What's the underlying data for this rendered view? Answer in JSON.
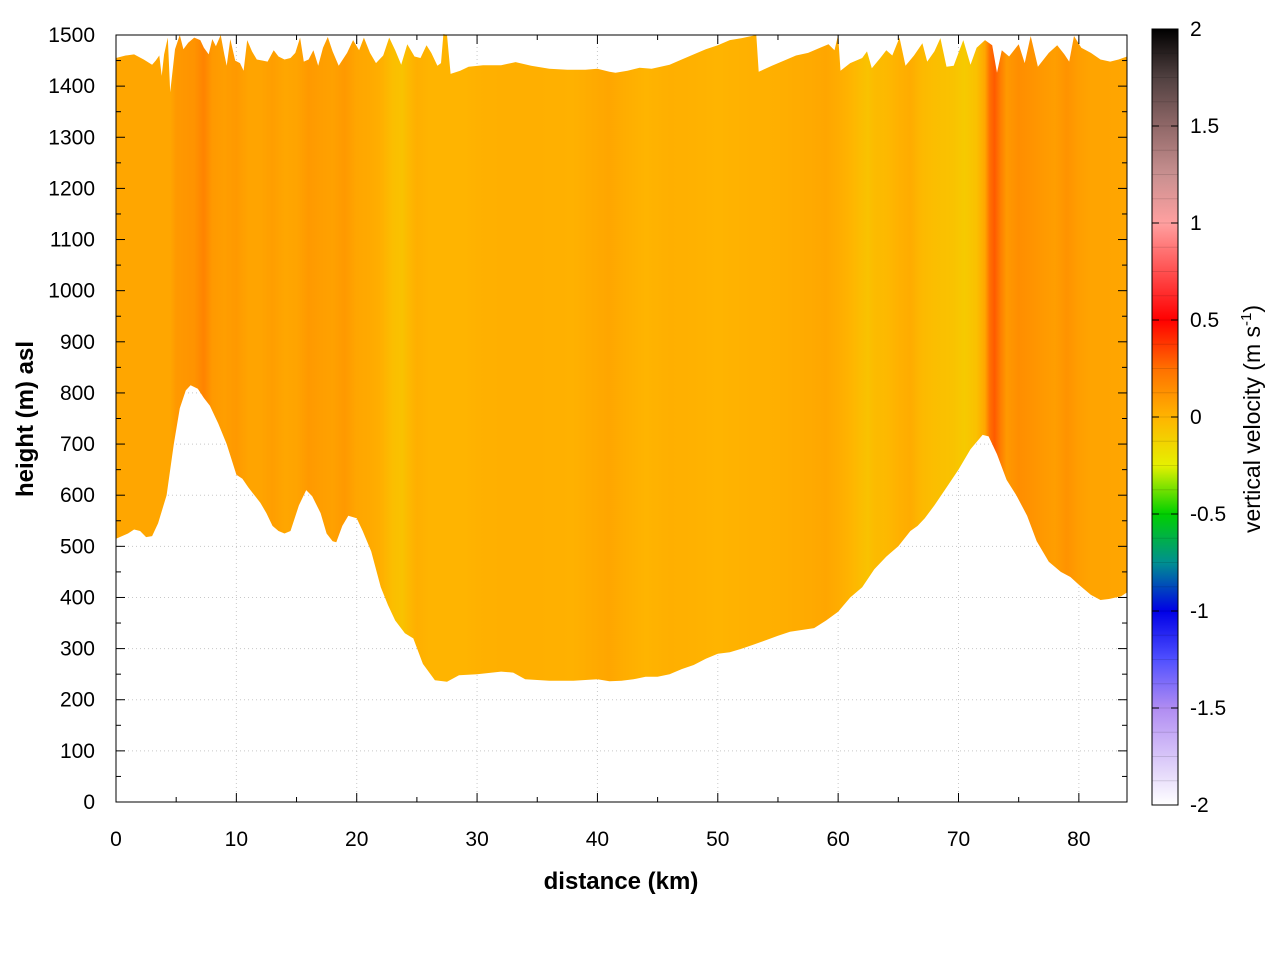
{
  "chart_data": {
    "type": "heatmap",
    "title": "",
    "xlabel": "distance (km)",
    "ylabel": "height (m) asl",
    "xlim": [
      0,
      84
    ],
    "ylim": [
      0,
      1500
    ],
    "x_ticks": [
      "0",
      "10",
      "20",
      "30",
      "40",
      "50",
      "60",
      "70",
      "80"
    ],
    "y_ticks": [
      "0",
      "100",
      "200",
      "300",
      "400",
      "500",
      "600",
      "700",
      "800",
      "900",
      "1000",
      "1100",
      "1200",
      "1300",
      "1400",
      "1500"
    ],
    "grid": true,
    "colorbar": {
      "label_main": "vertical velocity (m s",
      "label_sup": "-1",
      "label_end": ")",
      "range": [
        -2,
        2
      ],
      "ticks": [
        "2",
        "1.5",
        "1",
        "0.5",
        "0",
        "-0.5",
        "-1",
        "-1.5",
        "-2"
      ],
      "stops": [
        {
          "v": -2.0,
          "c": "#ffffff"
        },
        {
          "v": -1.5,
          "c": "#b08cf2"
        },
        {
          "v": -1.25,
          "c": "#5050ff"
        },
        {
          "v": -1.0,
          "c": "#0000e6"
        },
        {
          "v": -0.75,
          "c": "#009090"
        },
        {
          "v": -0.5,
          "c": "#00d000"
        },
        {
          "v": -0.25,
          "c": "#e6f000"
        },
        {
          "v": 0.0,
          "c": "#ffb400"
        },
        {
          "v": 0.25,
          "c": "#ff7000"
        },
        {
          "v": 0.5,
          "c": "#ff0000"
        },
        {
          "v": 0.75,
          "c": "#ff5050"
        },
        {
          "v": 1.0,
          "c": "#ffa0a0"
        },
        {
          "v": 1.25,
          "c": "#c89090"
        },
        {
          "v": 1.5,
          "c": "#906868"
        },
        {
          "v": 1.75,
          "c": "#504040"
        },
        {
          "v": 2.0,
          "c": "#000000"
        }
      ]
    },
    "terrain": [
      [
        0,
        515
      ],
      [
        1,
        525
      ],
      [
        1.5,
        533
      ],
      [
        2,
        530
      ],
      [
        2.5,
        518
      ],
      [
        3,
        520
      ],
      [
        3.5,
        545
      ],
      [
        4.2,
        600
      ],
      [
        4.8,
        700
      ],
      [
        5.3,
        770
      ],
      [
        5.8,
        805
      ],
      [
        6.2,
        815
      ],
      [
        6.8,
        808
      ],
      [
        7.3,
        790
      ],
      [
        7.8,
        775
      ],
      [
        8.5,
        740
      ],
      [
        9.2,
        700
      ],
      [
        10,
        640
      ],
      [
        10.5,
        632
      ],
      [
        11,
        615
      ],
      [
        12,
        585
      ],
      [
        12.5,
        565
      ],
      [
        13,
        540
      ],
      [
        13.5,
        530
      ],
      [
        14,
        525
      ],
      [
        14.5,
        530
      ],
      [
        15.2,
        580
      ],
      [
        15.8,
        610
      ],
      [
        16.3,
        598
      ],
      [
        17,
        565
      ],
      [
        17.5,
        525
      ],
      [
        18,
        510
      ],
      [
        18.3,
        508
      ],
      [
        18.8,
        540
      ],
      [
        19.3,
        560
      ],
      [
        20,
        555
      ],
      [
        20.5,
        530
      ],
      [
        21.2,
        490
      ],
      [
        22,
        420
      ],
      [
        22.6,
        385
      ],
      [
        23.2,
        355
      ],
      [
        24,
        330
      ],
      [
        24.7,
        320
      ],
      [
        25.5,
        270
      ],
      [
        26.5,
        238
      ],
      [
        27.5,
        235
      ],
      [
        28.5,
        248
      ],
      [
        30,
        250
      ],
      [
        32,
        255
      ],
      [
        33,
        253
      ],
      [
        34,
        240
      ],
      [
        36,
        237
      ],
      [
        38,
        237
      ],
      [
        40,
        240
      ],
      [
        41,
        236
      ],
      [
        42,
        237
      ],
      [
        43,
        240
      ],
      [
        44,
        245
      ],
      [
        45,
        245
      ],
      [
        46,
        250
      ],
      [
        47,
        260
      ],
      [
        48,
        268
      ],
      [
        49,
        280
      ],
      [
        50,
        290
      ],
      [
        51,
        293
      ],
      [
        52,
        300
      ],
      [
        53,
        308
      ],
      [
        55,
        325
      ],
      [
        56,
        333
      ],
      [
        58,
        340
      ],
      [
        59,
        355
      ],
      [
        60,
        372
      ],
      [
        61,
        400
      ],
      [
        62,
        420
      ],
      [
        63,
        455
      ],
      [
        64,
        480
      ],
      [
        65,
        500
      ],
      [
        66,
        530
      ],
      [
        66.6,
        540
      ],
      [
        67.2,
        555
      ],
      [
        68,
        580
      ],
      [
        69,
        615
      ],
      [
        70,
        650
      ],
      [
        71,
        690
      ],
      [
        72,
        718
      ],
      [
        72.5,
        715
      ],
      [
        73.2,
        680
      ],
      [
        74,
        630
      ],
      [
        74.8,
        600
      ],
      [
        75.7,
        560
      ],
      [
        76.5,
        510
      ],
      [
        77.5,
        470
      ],
      [
        78.5,
        450
      ],
      [
        79.3,
        440
      ],
      [
        80,
        425
      ],
      [
        81,
        405
      ],
      [
        81.8,
        395
      ],
      [
        82.5,
        397
      ],
      [
        83.5,
        402
      ],
      [
        84,
        410
      ]
    ],
    "top_edge": [
      [
        0,
        1455
      ],
      [
        0.8,
        1460
      ],
      [
        1.5,
        1462
      ],
      [
        2.3,
        1452
      ],
      [
        3,
        1442
      ],
      [
        3.3,
        1450
      ],
      [
        3.6,
        1460
      ],
      [
        3.8,
        1420
      ],
      [
        4,
        1462
      ],
      [
        4.3,
        1495
      ],
      [
        4.5,
        1388
      ],
      [
        4.9,
        1472
      ],
      [
        5.3,
        1500
      ],
      [
        5.6,
        1472
      ],
      [
        6,
        1485
      ],
      [
        6.5,
        1495
      ],
      [
        7,
        1490
      ],
      [
        7.3,
        1475
      ],
      [
        7.7,
        1462
      ],
      [
        8,
        1492
      ],
      [
        8.3,
        1478
      ],
      [
        8.7,
        1500
      ],
      [
        9,
        1462
      ],
      [
        9.2,
        1440
      ],
      [
        9.5,
        1492
      ],
      [
        9.9,
        1450
      ],
      [
        10.3,
        1445
      ],
      [
        10.6,
        1430
      ],
      [
        10.9,
        1490
      ],
      [
        11.3,
        1468
      ],
      [
        11.7,
        1452
      ],
      [
        12.2,
        1450
      ],
      [
        12.6,
        1448
      ],
      [
        13.1,
        1470
      ],
      [
        13.5,
        1458
      ],
      [
        14,
        1452
      ],
      [
        14.5,
        1455
      ],
      [
        14.9,
        1465
      ],
      [
        15.3,
        1495
      ],
      [
        15.6,
        1448
      ],
      [
        16,
        1452
      ],
      [
        16.4,
        1470
      ],
      [
        16.8,
        1440
      ],
      [
        17.2,
        1475
      ],
      [
        17.6,
        1496
      ],
      [
        18,
        1468
      ],
      [
        18.5,
        1440
      ],
      [
        19.2,
        1465
      ],
      [
        19.7,
        1490
      ],
      [
        20.2,
        1470
      ],
      [
        20.6,
        1495
      ],
      [
        21.1,
        1465
      ],
      [
        21.6,
        1445
      ],
      [
        22.2,
        1460
      ],
      [
        22.7,
        1495
      ],
      [
        23.2,
        1470
      ],
      [
        23.7,
        1442
      ],
      [
        24.2,
        1482
      ],
      [
        24.8,
        1458
      ],
      [
        25.3,
        1455
      ],
      [
        25.8,
        1480
      ],
      [
        26.2,
        1465
      ],
      [
        26.7,
        1440
      ],
      [
        27,
        1445
      ],
      [
        27.2,
        1502
      ],
      [
        27.5,
        1500
      ],
      [
        27.8,
        1424
      ],
      [
        28.6,
        1430
      ],
      [
        29.3,
        1438
      ],
      [
        30.5,
        1441
      ],
      [
        32,
        1441
      ],
      [
        33.2,
        1447
      ],
      [
        34.5,
        1440
      ],
      [
        36,
        1434
      ],
      [
        37.5,
        1432
      ],
      [
        39,
        1432
      ],
      [
        40,
        1434
      ],
      [
        41,
        1428
      ],
      [
        41.5,
        1426
      ],
      [
        42.5,
        1430
      ],
      [
        43.5,
        1436
      ],
      [
        44.5,
        1434
      ],
      [
        46,
        1442
      ],
      [
        47,
        1452
      ],
      [
        48,
        1462
      ],
      [
        49,
        1472
      ],
      [
        50,
        1480
      ],
      [
        51,
        1490
      ],
      [
        52,
        1494
      ],
      [
        53.2,
        1500
      ],
      [
        53.4,
        1428
      ],
      [
        54.5,
        1440
      ],
      [
        55.5,
        1450
      ],
      [
        56.5,
        1460
      ],
      [
        57.5,
        1465
      ],
      [
        58.5,
        1475
      ],
      [
        59.2,
        1482
      ],
      [
        59.7,
        1470
      ],
      [
        60,
        1500
      ],
      [
        60.2,
        1430
      ],
      [
        61,
        1445
      ],
      [
        62,
        1455
      ],
      [
        62.4,
        1468
      ],
      [
        62.8,
        1435
      ],
      [
        63.5,
        1455
      ],
      [
        64,
        1470
      ],
      [
        64.5,
        1460
      ],
      [
        65.1,
        1495
      ],
      [
        65.6,
        1440
      ],
      [
        66.3,
        1460
      ],
      [
        67,
        1484
      ],
      [
        67.4,
        1448
      ],
      [
        68,
        1468
      ],
      [
        68.5,
        1494
      ],
      [
        69,
        1438
      ],
      [
        69.6,
        1440
      ],
      [
        70,
        1465
      ],
      [
        70.4,
        1490
      ],
      [
        71,
        1442
      ],
      [
        71.5,
        1475
      ],
      [
        72.2,
        1490
      ],
      [
        72.8,
        1480
      ],
      [
        73.2,
        1426
      ],
      [
        73.6,
        1470
      ],
      [
        74.2,
        1458
      ],
      [
        75,
        1482
      ],
      [
        75.5,
        1445
      ],
      [
        76,
        1498
      ],
      [
        76.6,
        1438
      ],
      [
        77.5,
        1465
      ],
      [
        78.2,
        1480
      ],
      [
        78.8,
        1462
      ],
      [
        79.2,
        1448
      ],
      [
        79.6,
        1498
      ],
      [
        80.2,
        1475
      ],
      [
        81,
        1465
      ],
      [
        81.8,
        1452
      ],
      [
        82.6,
        1448
      ],
      [
        83.3,
        1452
      ],
      [
        84,
        1458
      ]
    ],
    "velocity_columns": [
      [
        0,
        0.05
      ],
      [
        4.5,
        0.05
      ],
      [
        5,
        0.1
      ],
      [
        6.5,
        0.12
      ],
      [
        7.3,
        0.18
      ],
      [
        8,
        0.1
      ],
      [
        9,
        0.08
      ],
      [
        10,
        0.1
      ],
      [
        11,
        0.06
      ],
      [
        12,
        0.06
      ],
      [
        13,
        0.08
      ],
      [
        14,
        0.05
      ],
      [
        15,
        0.06
      ],
      [
        16,
        0.1
      ],
      [
        17,
        0.08
      ],
      [
        18,
        0.07
      ],
      [
        19,
        0.1
      ],
      [
        20,
        0.05
      ],
      [
        21,
        0.04
      ],
      [
        22,
        0.02
      ],
      [
        23,
        -0.04
      ],
      [
        23.8,
        -0.06
      ],
      [
        24.3,
        -0.02
      ],
      [
        25,
        0.02
      ],
      [
        26,
        0.0
      ],
      [
        27,
        0.0
      ],
      [
        29,
        0.0
      ],
      [
        30,
        0.01
      ],
      [
        32,
        0.02
      ],
      [
        35,
        0.02
      ],
      [
        38,
        0.01
      ],
      [
        40,
        0.04
      ],
      [
        41,
        0.05
      ],
      [
        42,
        0.03
      ],
      [
        44,
        0.0
      ],
      [
        46,
        0.02
      ],
      [
        48,
        0.01
      ],
      [
        50,
        0.0
      ],
      [
        52,
        0.01
      ],
      [
        55,
        0.02
      ],
      [
        58,
        0.04
      ],
      [
        59,
        0.05
      ],
      [
        60,
        0.03
      ],
      [
        61,
        0.0
      ],
      [
        62,
        -0.04
      ],
      [
        62.5,
        -0.06
      ],
      [
        63,
        -0.03
      ],
      [
        64,
        -0.02
      ],
      [
        65,
        0.01
      ],
      [
        66,
        0.03
      ],
      [
        67,
        -0.02
      ],
      [
        68,
        -0.04
      ],
      [
        69.5,
        -0.06
      ],
      [
        70.5,
        -0.09
      ],
      [
        71.5,
        -0.05
      ],
      [
        72.2,
        0.05
      ],
      [
        72.6,
        0.25
      ],
      [
        73,
        0.3
      ],
      [
        73.5,
        0.2
      ],
      [
        74,
        0.1
      ],
      [
        75,
        0.14
      ],
      [
        76,
        0.12
      ],
      [
        77,
        0.1
      ],
      [
        78,
        0.08
      ],
      [
        79,
        0.12
      ],
      [
        80,
        0.08
      ],
      [
        81,
        0.06
      ],
      [
        82,
        0.06
      ],
      [
        84,
        0.05
      ]
    ]
  }
}
